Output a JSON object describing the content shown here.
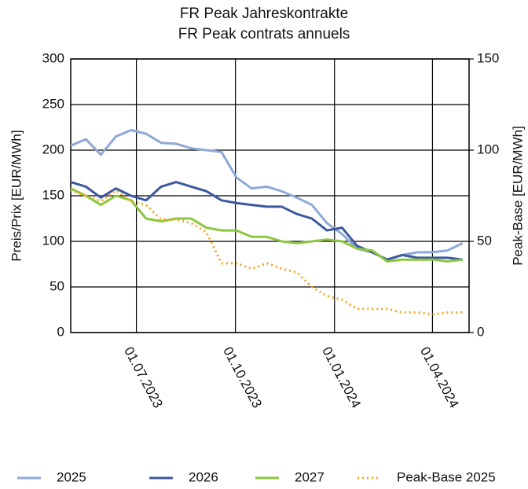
{
  "chart_data": {
    "type": "line",
    "title": "FR Peak Jahreskontrakte",
    "subtitle": "FR Peak contrats annuels",
    "y_label": "Preis/Prix [EUR/MWh]",
    "y2_label": "Peak-Base [EUR/MWh]",
    "x": [
      "2023-05-01",
      "2023-05-15",
      "2023-05-29",
      "2023-06-12",
      "2023-06-26",
      "2023-07-10",
      "2023-07-24",
      "2023-08-07",
      "2023-08-21",
      "2023-09-04",
      "2023-09-18",
      "2023-10-02",
      "2023-10-16",
      "2023-10-30",
      "2023-11-13",
      "2023-11-27",
      "2023-12-11",
      "2023-12-25",
      "2024-01-08",
      "2024-01-22",
      "2024-02-05",
      "2024-02-19",
      "2024-03-04",
      "2024-03-18",
      "2024-04-01",
      "2024-04-15",
      "2024-04-29"
    ],
    "series": [
      {
        "name": "2025",
        "color": "#8fa8d6",
        "values": [
          205,
          212,
          195,
          215,
          222,
          218,
          208,
          207,
          202,
          200,
          198,
          170,
          158,
          160,
          155,
          148,
          140,
          120,
          108,
          92,
          88,
          80,
          85,
          88,
          88,
          90,
          98
        ]
      },
      {
        "name": "2026",
        "color": "#3c58a0",
        "values": [
          165,
          160,
          148,
          158,
          150,
          145,
          160,
          165,
          160,
          155,
          145,
          142,
          140,
          138,
          138,
          130,
          125,
          112,
          115,
          95,
          88,
          80,
          85,
          82,
          82,
          82,
          80
        ]
      },
      {
        "name": "2027",
        "color": "#8cc63f",
        "values": [
          158,
          150,
          140,
          150,
          145,
          125,
          122,
          125,
          125,
          115,
          112,
          112,
          105,
          105,
          100,
          98,
          100,
          102,
          100,
          92,
          90,
          78,
          80,
          80,
          80,
          78,
          80
        ]
      },
      {
        "name": "Peak-Base 2025",
        "color": "#f5a623",
        "style": "dotted",
        "axis": "y2",
        "values": [
          78,
          75,
          72,
          78,
          72,
          70,
          62,
          62,
          60,
          55,
          38,
          38,
          35,
          38,
          35,
          33,
          25,
          20,
          18,
          13,
          13,
          13,
          11,
          11,
          10,
          11,
          11
        ]
      }
    ],
    "xlim": [
      "2023-05-01",
      "2024-05-05"
    ],
    "xticks": [
      {
        "value": "2023-07-01",
        "label": "01.07.2023"
      },
      {
        "value": "2023-10-01",
        "label": "01.10.2023"
      },
      {
        "value": "2024-01-01",
        "label": "01.01.2024"
      },
      {
        "value": "2024-04-01",
        "label": "01.04.2024"
      }
    ],
    "ylim": [
      0,
      300
    ],
    "yticks": [
      0,
      50,
      100,
      150,
      200,
      250,
      300
    ],
    "y2lim": [
      0,
      150
    ],
    "y2ticks": [
      0,
      50,
      100,
      150
    ],
    "grid": true,
    "legend": "bottom"
  }
}
